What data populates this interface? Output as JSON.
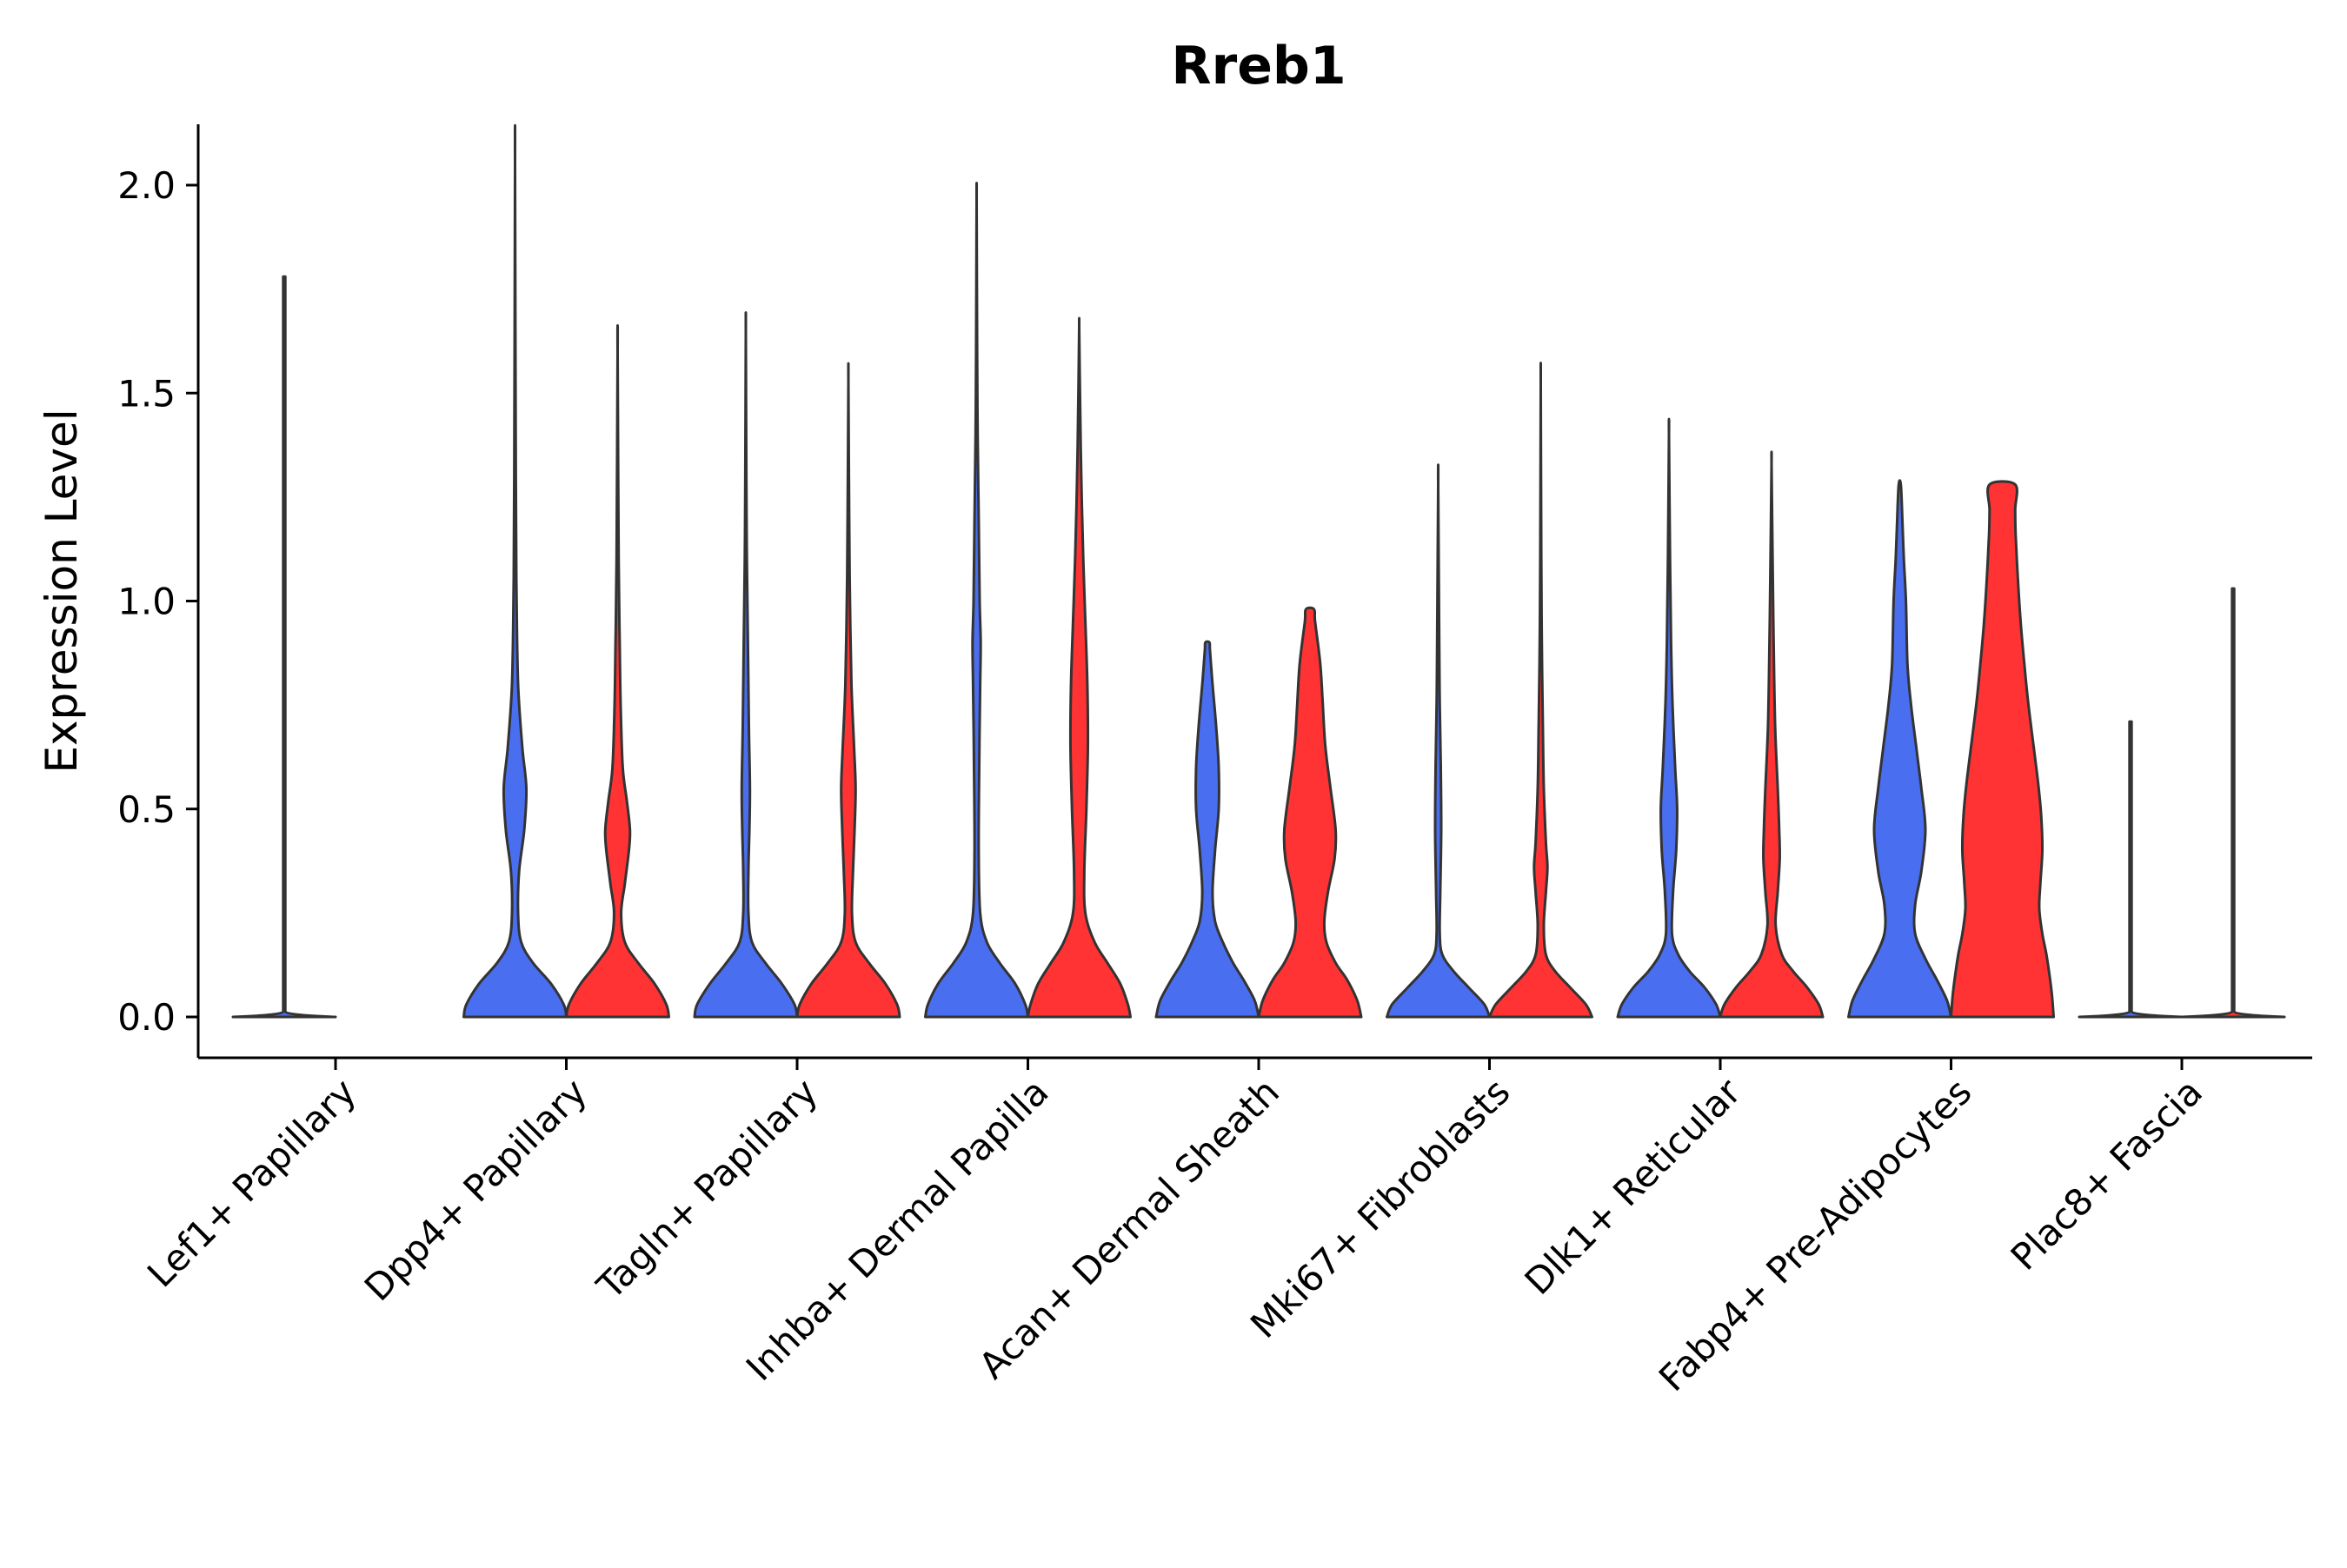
{
  "chart_data": {
    "type": "violin",
    "title": "Rreb1",
    "xlabel": "",
    "ylabel": "Expression Level",
    "ylim": [
      -0.1,
      2.15
    ],
    "yticks": [
      "0.0",
      "0.5",
      "1.0",
      "1.5",
      "2.0"
    ],
    "ytick_values": [
      0.0,
      0.5,
      1.0,
      1.5,
      2.0
    ],
    "grid": false,
    "categories": [
      "Lef1+ Papillary",
      "Dpp4+ Papillary",
      "Tagln+ Papillary",
      "Inhba+ Dermal Papilla",
      "Acan+ Dermal Sheath",
      "Mki67+ Fibroblasts",
      "Dlk1+ Reticular",
      "Fabp4+ Pre-Adipocytes",
      "Plac8+ Fascia"
    ],
    "colors": {
      "group_a": "#4A6EF0",
      "group_b": "#FF3333",
      "outline": "#333333",
      "axis": "#000000"
    },
    "series": [
      {
        "name": "group_a",
        "color": "#4A6EF0",
        "violins": [
          {
            "category": "Lef1+ Papillary",
            "max": 1.78,
            "profile": [
              [
                0.0,
                1.0
              ],
              [
                0.005,
                0.3
              ],
              [
                0.02,
                0.02
              ],
              [
                1.78,
                0.0
              ]
            ]
          },
          {
            "category": "Dpp4+ Papillary",
            "max": 2.05,
            "profile": [
              [
                0.0,
                1.0
              ],
              [
                0.03,
                0.95
              ],
              [
                0.08,
                0.7
              ],
              [
                0.13,
                0.35
              ],
              [
                0.18,
                0.12
              ],
              [
                0.25,
                0.06
              ],
              [
                0.35,
                0.08
              ],
              [
                0.45,
                0.18
              ],
              [
                0.55,
                0.22
              ],
              [
                0.65,
                0.14
              ],
              [
                0.8,
                0.06
              ],
              [
                1.0,
                0.03
              ],
              [
                1.3,
                0.015
              ],
              [
                2.05,
                0.0
              ]
            ]
          },
          {
            "category": "Tagln+ Papillary",
            "max": 1.65,
            "profile": [
              [
                0.0,
                1.0
              ],
              [
                0.03,
                0.95
              ],
              [
                0.08,
                0.7
              ],
              [
                0.13,
                0.38
              ],
              [
                0.18,
                0.12
              ],
              [
                0.25,
                0.05
              ],
              [
                0.35,
                0.05
              ],
              [
                0.45,
                0.07
              ],
              [
                0.55,
                0.08
              ],
              [
                0.7,
                0.06
              ],
              [
                0.9,
                0.04
              ],
              [
                1.1,
                0.02
              ],
              [
                1.3,
                0.01
              ],
              [
                1.65,
                0.0
              ]
            ]
          },
          {
            "category": "Inhba+ Dermal Papilla",
            "max": 1.96,
            "profile": [
              [
                0.0,
                1.0
              ],
              [
                0.03,
                0.95
              ],
              [
                0.08,
                0.75
              ],
              [
                0.13,
                0.45
              ],
              [
                0.18,
                0.2
              ],
              [
                0.25,
                0.07
              ],
              [
                0.4,
                0.04
              ],
              [
                0.6,
                0.05
              ],
              [
                0.8,
                0.07
              ],
              [
                0.9,
                0.08
              ],
              [
                1.0,
                0.06
              ],
              [
                1.2,
                0.04
              ],
              [
                1.4,
                0.02
              ],
              [
                1.6,
                0.01
              ],
              [
                1.96,
                0.0
              ]
            ]
          },
          {
            "category": "Acan+ Dermal Sheath",
            "max": 0.9,
            "profile": [
              [
                0.0,
                1.0
              ],
              [
                0.04,
                0.92
              ],
              [
                0.09,
                0.7
              ],
              [
                0.13,
                0.5
              ],
              [
                0.18,
                0.3
              ],
              [
                0.23,
                0.15
              ],
              [
                0.3,
                0.1
              ],
              [
                0.4,
                0.15
              ],
              [
                0.5,
                0.22
              ],
              [
                0.6,
                0.22
              ],
              [
                0.7,
                0.17
              ],
              [
                0.8,
                0.1
              ],
              [
                0.88,
                0.05
              ],
              [
                0.9,
                0.04
              ]
            ]
          },
          {
            "category": "Mki67+ Fibroblasts",
            "max": 1.28,
            "profile": [
              [
                0.0,
                1.0
              ],
              [
                0.03,
                0.9
              ],
              [
                0.07,
                0.6
              ],
              [
                0.11,
                0.3
              ],
              [
                0.15,
                0.08
              ],
              [
                0.2,
                0.03
              ],
              [
                0.3,
                0.04
              ],
              [
                0.45,
                0.06
              ],
              [
                0.6,
                0.05
              ],
              [
                0.75,
                0.03
              ],
              [
                0.9,
                0.02
              ],
              [
                1.28,
                0.0
              ]
            ]
          },
          {
            "category": "Dlk1+ Reticular",
            "max": 1.4,
            "profile": [
              [
                0.0,
                1.0
              ],
              [
                0.03,
                0.92
              ],
              [
                0.07,
                0.7
              ],
              [
                0.11,
                0.4
              ],
              [
                0.15,
                0.18
              ],
              [
                0.2,
                0.06
              ],
              [
                0.3,
                0.08
              ],
              [
                0.4,
                0.14
              ],
              [
                0.5,
                0.16
              ],
              [
                0.6,
                0.12
              ],
              [
                0.75,
                0.07
              ],
              [
                0.9,
                0.04
              ],
              [
                1.1,
                0.02
              ],
              [
                1.4,
                0.0
              ]
            ]
          },
          {
            "category": "Fabp4+ Pre-Adipocytes",
            "max": 1.28,
            "profile": [
              [
                0.0,
                1.0
              ],
              [
                0.04,
                0.92
              ],
              [
                0.09,
                0.72
              ],
              [
                0.14,
                0.5
              ],
              [
                0.2,
                0.3
              ],
              [
                0.27,
                0.3
              ],
              [
                0.35,
                0.42
              ],
              [
                0.45,
                0.5
              ],
              [
                0.55,
                0.42
              ],
              [
                0.65,
                0.32
              ],
              [
                0.75,
                0.22
              ],
              [
                0.85,
                0.15
              ],
              [
                1.0,
                0.12
              ],
              [
                1.1,
                0.08
              ],
              [
                1.2,
                0.05
              ],
              [
                1.28,
                0.02
              ]
            ]
          },
          {
            "category": "Plac8+ Fascia",
            "max": 0.71,
            "profile": [
              [
                0.0,
                1.0
              ],
              [
                0.005,
                0.3
              ],
              [
                0.02,
                0.02
              ],
              [
                0.71,
                0.0
              ]
            ]
          }
        ]
      },
      {
        "name": "group_b",
        "color": "#FF3333",
        "violins": [
          {
            "category": "Lef1+ Papillary",
            "max": 0.0,
            "profile": []
          },
          {
            "category": "Dpp4+ Papillary",
            "max": 1.6,
            "profile": [
              [
                0.0,
                1.0
              ],
              [
                0.03,
                0.95
              ],
              [
                0.08,
                0.72
              ],
              [
                0.13,
                0.4
              ],
              [
                0.18,
                0.14
              ],
              [
                0.25,
                0.07
              ],
              [
                0.32,
                0.14
              ],
              [
                0.4,
                0.22
              ],
              [
                0.45,
                0.24
              ],
              [
                0.52,
                0.18
              ],
              [
                0.6,
                0.1
              ],
              [
                0.75,
                0.06
              ],
              [
                0.9,
                0.04
              ],
              [
                1.1,
                0.02
              ],
              [
                1.6,
                0.0
              ]
            ]
          },
          {
            "category": "Tagln+ Papillary",
            "max": 1.53,
            "profile": [
              [
                0.0,
                1.0
              ],
              [
                0.03,
                0.95
              ],
              [
                0.08,
                0.72
              ],
              [
                0.13,
                0.4
              ],
              [
                0.18,
                0.14
              ],
              [
                0.25,
                0.07
              ],
              [
                0.35,
                0.09
              ],
              [
                0.45,
                0.12
              ],
              [
                0.55,
                0.14
              ],
              [
                0.65,
                0.11
              ],
              [
                0.8,
                0.06
              ],
              [
                1.0,
                0.03
              ],
              [
                1.2,
                0.015
              ],
              [
                1.53,
                0.0
              ]
            ]
          },
          {
            "category": "Inhba+ Dermal Papilla",
            "max": 1.66,
            "profile": [
              [
                0.0,
                1.0
              ],
              [
                0.03,
                0.95
              ],
              [
                0.08,
                0.8
              ],
              [
                0.13,
                0.55
              ],
              [
                0.18,
                0.3
              ],
              [
                0.25,
                0.12
              ],
              [
                0.35,
                0.1
              ],
              [
                0.5,
                0.14
              ],
              [
                0.65,
                0.17
              ],
              [
                0.8,
                0.16
              ],
              [
                0.95,
                0.12
              ],
              [
                1.1,
                0.08
              ],
              [
                1.3,
                0.04
              ],
              [
                1.5,
                0.015
              ],
              [
                1.66,
                0.0
              ]
            ]
          },
          {
            "category": "Acan+ Dermal Sheath",
            "max": 0.98,
            "profile": [
              [
                0.0,
                1.0
              ],
              [
                0.04,
                0.92
              ],
              [
                0.09,
                0.72
              ],
              [
                0.13,
                0.5
              ],
              [
                0.18,
                0.32
              ],
              [
                0.23,
                0.28
              ],
              [
                0.3,
                0.35
              ],
              [
                0.38,
                0.48
              ],
              [
                0.45,
                0.5
              ],
              [
                0.55,
                0.4
              ],
              [
                0.65,
                0.3
              ],
              [
                0.75,
                0.25
              ],
              [
                0.85,
                0.2
              ],
              [
                0.95,
                0.1
              ],
              [
                0.98,
                0.08
              ]
            ]
          },
          {
            "category": "Mki67+ Fibroblasts",
            "max": 1.52,
            "profile": [
              [
                0.0,
                1.0
              ],
              [
                0.03,
                0.88
              ],
              [
                0.07,
                0.58
              ],
              [
                0.11,
                0.28
              ],
              [
                0.15,
                0.1
              ],
              [
                0.22,
                0.06
              ],
              [
                0.3,
                0.1
              ],
              [
                0.36,
                0.13
              ],
              [
                0.42,
                0.1
              ],
              [
                0.55,
                0.06
              ],
              [
                0.7,
                0.04
              ],
              [
                0.9,
                0.02
              ],
              [
                1.1,
                0.01
              ],
              [
                1.52,
                0.0
              ]
            ]
          },
          {
            "category": "Dlk1+ Reticular",
            "max": 1.33,
            "profile": [
              [
                0.0,
                1.0
              ],
              [
                0.03,
                0.92
              ],
              [
                0.07,
                0.7
              ],
              [
                0.11,
                0.42
              ],
              [
                0.15,
                0.2
              ],
              [
                0.22,
                0.08
              ],
              [
                0.3,
                0.12
              ],
              [
                0.38,
                0.16
              ],
              [
                0.45,
                0.15
              ],
              [
                0.55,
                0.12
              ],
              [
                0.7,
                0.07
              ],
              [
                0.9,
                0.04
              ],
              [
                1.1,
                0.02
              ],
              [
                1.33,
                0.0
              ]
            ]
          },
          {
            "category": "Fabp4+ Pre-Adipocytes",
            "max": 1.28,
            "profile": [
              [
                0.0,
                1.0
              ],
              [
                0.05,
                0.97
              ],
              [
                0.1,
                0.92
              ],
              [
                0.15,
                0.86
              ],
              [
                0.2,
                0.78
              ],
              [
                0.26,
                0.72
              ],
              [
                0.32,
                0.74
              ],
              [
                0.4,
                0.78
              ],
              [
                0.48,
                0.76
              ],
              [
                0.56,
                0.7
              ],
              [
                0.66,
                0.6
              ],
              [
                0.76,
                0.5
              ],
              [
                0.86,
                0.42
              ],
              [
                0.96,
                0.35
              ],
              [
                1.06,
                0.3
              ],
              [
                1.16,
                0.26
              ],
              [
                1.22,
                0.25
              ],
              [
                1.28,
                0.25
              ]
            ]
          },
          {
            "category": "Plac8+ Fascia",
            "max": 1.03,
            "profile": [
              [
                0.0,
                1.0
              ],
              [
                0.005,
                0.3
              ],
              [
                0.02,
                0.02
              ],
              [
                1.03,
                0.0
              ]
            ]
          }
        ]
      }
    ]
  }
}
